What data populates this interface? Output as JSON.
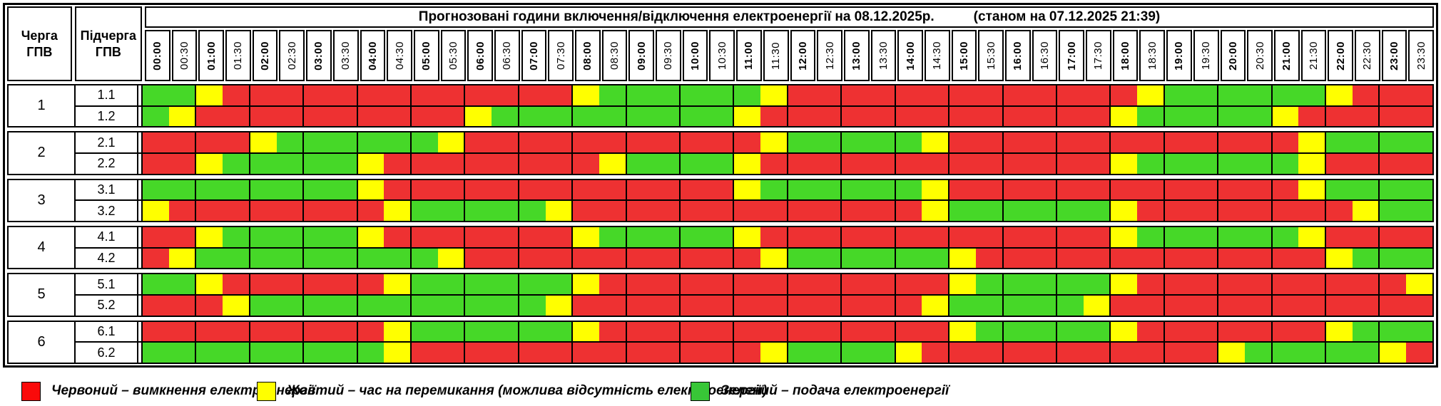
{
  "title": {
    "main": "Прогнозовані години включення/відключення електроенергії на 08.12.2025р.",
    "as_of": "(станом на 07.12.2025 21:39)"
  },
  "column_headers": {
    "queue": "Черга ГПВ",
    "subqueue": "Підчерга ГПВ"
  },
  "colors": {
    "red": "#EE3132",
    "yellow": "#FFFF00",
    "green": "#46D828"
  },
  "legend": [
    {
      "color": "#FA0A0A",
      "label": "Червоний – вимкнення електроенергії"
    },
    {
      "color": "#FFFF00",
      "label": "Жовтий – час на перемикання (можлива відсутність електроенергії)"
    },
    {
      "color": "#38C637",
      "label": "Зелений – подача електроенергії"
    }
  ],
  "chart_data": {
    "type": "heatmap",
    "title": "Прогнозовані години включення/відключення електроенергії на 08.12.2025р.",
    "as_of": "станом на 07.12.2025 21:39",
    "slot_minutes": 30,
    "x_labels": [
      "00:00",
      "00:30",
      "01:00",
      "01:30",
      "02:00",
      "02:30",
      "03:00",
      "03:30",
      "04:00",
      "04:30",
      "05:00",
      "05:30",
      "06:00",
      "06:30",
      "07:00",
      "07:30",
      "08:00",
      "08:30",
      "09:00",
      "09:30",
      "10:00",
      "10:30",
      "11:00",
      "11:30",
      "12:00",
      "12:30",
      "13:00",
      "13:30",
      "14:00",
      "14:30",
      "15:00",
      "15:30",
      "16:00",
      "16:30",
      "17:00",
      "17:30",
      "18:00",
      "18:30",
      "19:00",
      "19:30",
      "20:00",
      "20:30",
      "21:00",
      "21:30",
      "22:00",
      "22:30",
      "23:00",
      "23:30"
    ],
    "value_legend": {
      "R": "вимкнення електроенергії",
      "Y": "час на перемикання (можлива відсутність електроенергії)",
      "G": "подача електроенергії"
    },
    "groups": [
      {
        "queue": "1",
        "rows": [
          {
            "subqueue": "1.1",
            "slots": "GGYRRRRRRRRRRRRRYGGGGGGYRRRRRRRRRRRRRYGGGGGGYRRR"
          },
          {
            "subqueue": "1.2",
            "slots": "GYRRRRRRRRRRYGGGGGGGGGYRRRRRRRRRRRRRYGGGGGYRRRRR"
          }
        ]
      },
      {
        "queue": "2",
        "rows": [
          {
            "subqueue": "2.1",
            "slots": "RRRRYGGGGGGYRRRRRRRRRRRYGGGGGYRRRRRRRRRRRRRYGGGG"
          },
          {
            "subqueue": "2.2",
            "slots": "RRYGGGGGYRRRRRRRRYGGGGYRRRRRRRRRRRRRYGGGGGGYRRRR"
          }
        ]
      },
      {
        "queue": "3",
        "rows": [
          {
            "subqueue": "3.1",
            "slots": "GGGGGGGGYRRRRRRRRRRRRRYGGGGGGYRRRRRRRRRRRRRYGGGG"
          },
          {
            "subqueue": "3.2",
            "slots": "YRRRRRRRRYGGGGGYRRRRRRRRRRRRRYGGGGGGYRRRRRRRRYGG"
          }
        ]
      },
      {
        "queue": "4",
        "rows": [
          {
            "subqueue": "4.1",
            "slots": "RRYGGGGGYRRRRRRRYGGGGGYRRRRRRRRRRRRRYGGGGGGYRRRR"
          },
          {
            "subqueue": "4.2",
            "slots": "RYGGGGGGGGGYRRRRRRRRRRRYGGGGGGYRRRRRRRRRRRRRYGGG"
          }
        ]
      },
      {
        "queue": "5",
        "rows": [
          {
            "subqueue": "5.1",
            "slots": "GGYRRRRRRYGGGGGGYRRRRRRRRRRRRRYGGGGGYRRRRRRRRRRY"
          },
          {
            "subqueue": "5.2",
            "slots": "RRRYGGGGGGGGGGGYRRRRRRRRRRRRRYGGGGGYRRRRRRRRRRRR"
          }
        ]
      },
      {
        "queue": "6",
        "rows": [
          {
            "subqueue": "6.1",
            "slots": "RRRRRRRRRYGGGGGGYRRRRRRRRRRRRRYGGGGGYRRRRRRRYGGG"
          },
          {
            "subqueue": "6.2",
            "slots": "GGGGGGGGGYRRRRRRRRRRRRRYGGGGYRRRRRRRRRRRYGGGGGYR"
          }
        ]
      }
    ]
  }
}
